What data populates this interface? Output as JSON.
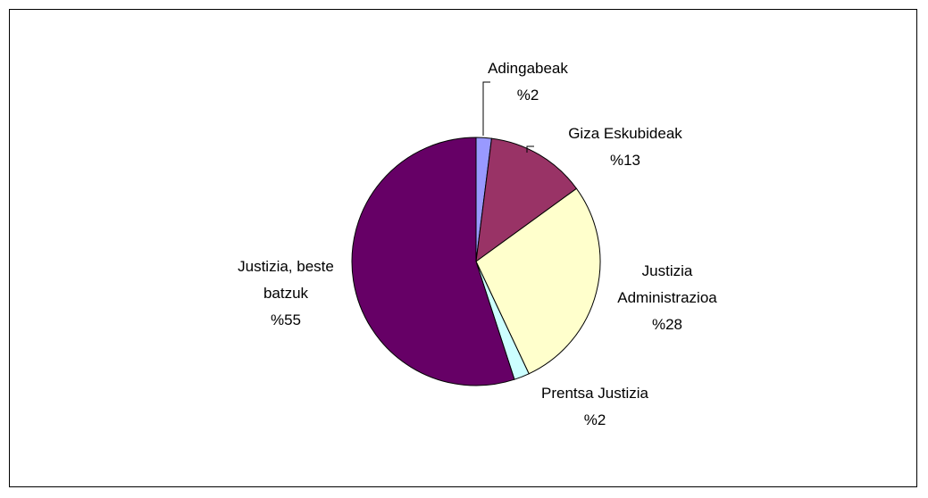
{
  "chart_data": {
    "type": "pie",
    "title": "",
    "slices": [
      {
        "label": "Adingabeak",
        "pct_label": "%2",
        "value": 2,
        "color": "#9999ff"
      },
      {
        "label": "Giza Eskubideak",
        "pct_label": "%13",
        "value": 13,
        "color": "#993366"
      },
      {
        "label": "Justizia Administrazioa",
        "pct_label": "%28",
        "value": 28,
        "color": "#ffffcc"
      },
      {
        "label": "Prentsa Justizia",
        "pct_label": "%2",
        "value": 2,
        "color": "#ccffff"
      },
      {
        "label": "Justizia, beste batzuk",
        "pct_label": "%55",
        "value": 55,
        "color": "#660066"
      }
    ],
    "legend": "none",
    "label_position": "outside"
  }
}
